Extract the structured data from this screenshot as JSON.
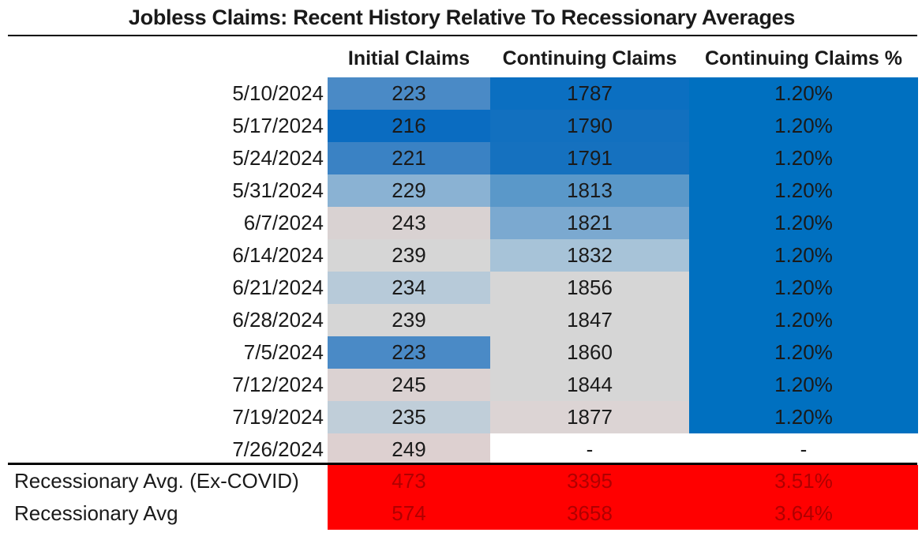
{
  "title": "Jobless Claims: Recent History Relative To Recessionary Averages",
  "headers": {
    "initial": "Initial Claims",
    "continuing": "Continuing Claims",
    "continuing_pct": "Continuing Claims %"
  },
  "colors": {
    "recession_fill": "#ff0000",
    "pct_fill": "#0070c0"
  },
  "rows": [
    {
      "date": "5/10/2024",
      "initial": "223",
      "continuing": "1787",
      "pct": "1.20%",
      "bg1": "#4a8ac6",
      "bg2": "#0b6fc1",
      "bg3": "#0070c0"
    },
    {
      "date": "5/17/2024",
      "initial": "216",
      "continuing": "1790",
      "pct": "1.20%",
      "bg1": "#0a6cc1",
      "bg2": "#1270bf",
      "bg3": "#0070c0"
    },
    {
      "date": "5/24/2024",
      "initial": "221",
      "continuing": "1791",
      "pct": "1.20%",
      "bg1": "#3a82c4",
      "bg2": "#1571bf",
      "bg3": "#0070c0"
    },
    {
      "date": "5/31/2024",
      "initial": "229",
      "continuing": "1813",
      "pct": "1.20%",
      "bg1": "#8ab2d3",
      "bg2": "#5a98c9",
      "bg3": "#0070c0"
    },
    {
      "date": "6/7/2024",
      "initial": "243",
      "continuing": "1821",
      "pct": "1.20%",
      "bg1": "#d9d2d2",
      "bg2": "#7ba9d0",
      "bg3": "#0070c0"
    },
    {
      "date": "6/14/2024",
      "initial": "239",
      "continuing": "1832",
      "pct": "1.20%",
      "bg1": "#d6d6d6",
      "bg2": "#a7c3d8",
      "bg3": "#0070c0"
    },
    {
      "date": "6/21/2024",
      "initial": "234",
      "continuing": "1856",
      "pct": "1.20%",
      "bg1": "#b7cad9",
      "bg2": "#d6d6d6",
      "bg3": "#0070c0"
    },
    {
      "date": "6/28/2024",
      "initial": "239",
      "continuing": "1847",
      "pct": "1.20%",
      "bg1": "#d6d6d6",
      "bg2": "#d6d6d6",
      "bg3": "#0070c0"
    },
    {
      "date": "7/5/2024",
      "initial": "223",
      "continuing": "1860",
      "pct": "1.20%",
      "bg1": "#4a8ac6",
      "bg2": "#d6d6d6",
      "bg3": "#0070c0"
    },
    {
      "date": "7/12/2024",
      "initial": "245",
      "continuing": "1844",
      "pct": "1.20%",
      "bg1": "#dbd2d2",
      "bg2": "#d6d6d6",
      "bg3": "#0070c0"
    },
    {
      "date": "7/19/2024",
      "initial": "235",
      "continuing": "1877",
      "pct": "1.20%",
      "bg1": "#c0ced9",
      "bg2": "#dcd4d4",
      "bg3": "#0070c0"
    },
    {
      "date": "7/26/2024",
      "initial": "249",
      "continuing": "-",
      "pct": "-",
      "bg1": "#ddd0d0",
      "bg2": "#ffffff",
      "bg3": "#ffffff"
    }
  ],
  "recession": [
    {
      "label": "Recessionary Avg. (Ex-COVID)",
      "initial": "473",
      "continuing": "3395",
      "pct": "3.51%"
    },
    {
      "label": "Recessionary Avg",
      "initial": "574",
      "continuing": "3658",
      "pct": "3.64%"
    }
  ]
}
